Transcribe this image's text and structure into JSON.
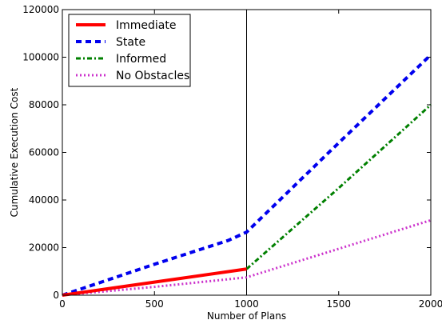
{
  "chart_data": {
    "type": "line",
    "title": "",
    "xlabel": "Number of Plans",
    "ylabel": "Cumulative Execution Cost",
    "xlim": [
      0,
      2000
    ],
    "ylim": [
      0,
      120000
    ],
    "xticks": [
      0,
      500,
      1000,
      1500,
      2000
    ],
    "yticks": [
      0,
      20000,
      40000,
      60000,
      80000,
      100000,
      120000
    ],
    "grid": false,
    "legend_position": "top-left",
    "vertical_reference_line_x": 1000,
    "series": [
      {
        "name": "Immediate",
        "color": "#ff0000",
        "dash": "solid",
        "x": [
          0,
          500,
          1000
        ],
        "y": [
          0,
          5500,
          11000
        ]
      },
      {
        "name": "State",
        "color": "#0000ee",
        "dash": "dashed",
        "x": [
          0,
          500,
          900,
          1000,
          1500,
          2000
        ],
        "y": [
          0,
          13000,
          23000,
          26500,
          64000,
          101000
        ]
      },
      {
        "name": "Informed",
        "color": "#008000",
        "dash": "dashdot",
        "x": [
          1000,
          1500,
          2000
        ],
        "y": [
          11000,
          45000,
          80000
        ]
      },
      {
        "name": "No Obstacles",
        "color": "#cc33cc",
        "dash": "dotted",
        "x": [
          0,
          500,
          1000,
          1500,
          2000
        ],
        "y": [
          0,
          3500,
          7500,
          19500,
          31500
        ]
      }
    ]
  }
}
